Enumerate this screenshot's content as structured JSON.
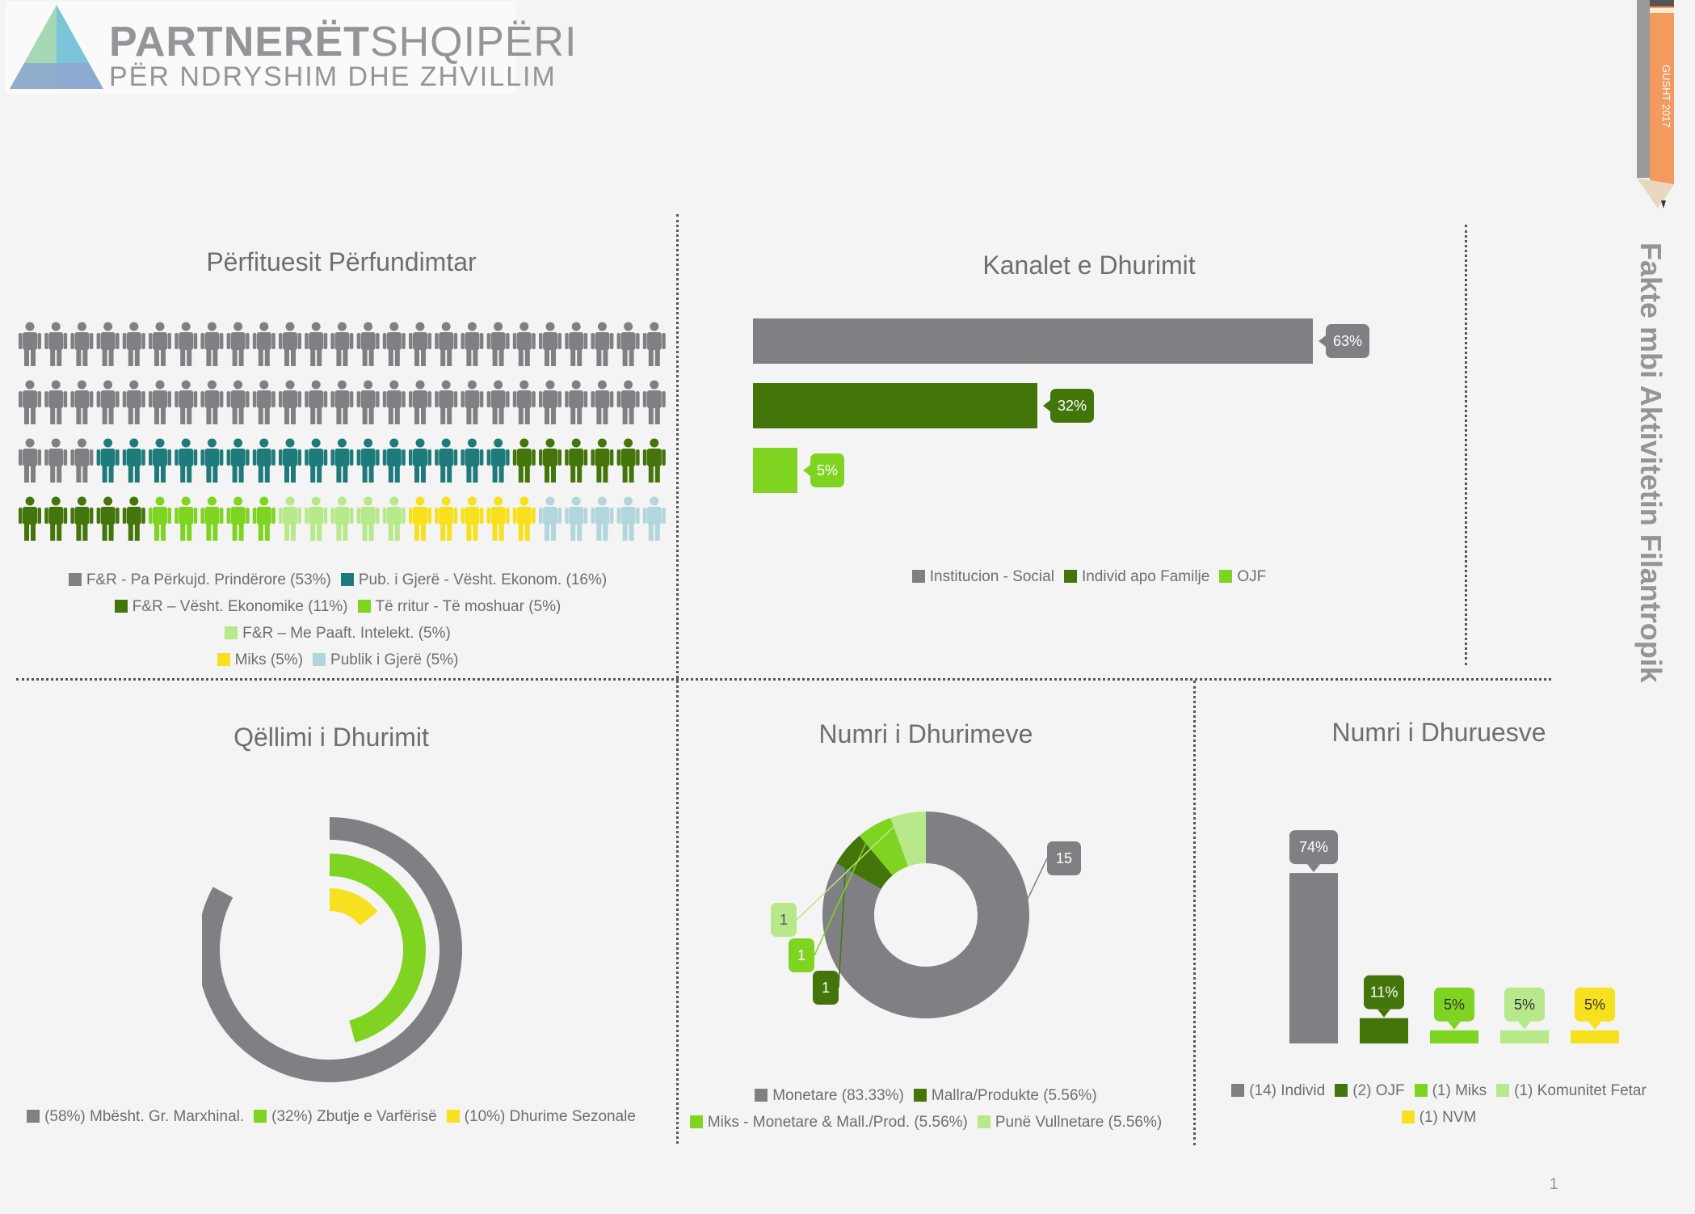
{
  "header": {
    "logo_main_bold": "PARTNERËT",
    "logo_main_light": "SHQIPËRI",
    "logo_sub": "PËR NDRYSHIM DHE ZHVILLIM",
    "side_title": "Fakte mbi Aktivitetin Filantropik",
    "pencil_label": "GUSHT 2017",
    "page_number": "1"
  },
  "colors": {
    "gray": "#808084",
    "teal": "#1f7b7b",
    "dark_green": "#43750a",
    "lime": "#7fd421",
    "light_green": "#b7e98a",
    "yellow": "#f7e11e",
    "light_blue": "#b3d6dd",
    "pencil_orange": "#f39a5f"
  },
  "chart_data": [
    {
      "id": "perfituesit",
      "type": "pictogram",
      "title": "Përfituesit Përfundimtar",
      "icons_per_row": 25,
      "rows": 4,
      "series": [
        {
          "name": "F&R - Pa Përkujd. Prindërore (53%)",
          "count": 53,
          "color": "#808084"
        },
        {
          "name": "Pub. i Gjerë - Vësht. Ekonom. (16%)",
          "count": 16,
          "color": "#1f7b7b"
        },
        {
          "name": "F&R – Vësht. Ekonomike (11%)",
          "count": 11,
          "color": "#43750a"
        },
        {
          "name": "Të rritur - Të moshuar (5%)",
          "count": 5,
          "color": "#7fd421"
        },
        {
          "name": "F&R – Me Paaft. Intelekt. (5%)",
          "count": 5,
          "color": "#b7e98a"
        },
        {
          "name": "Miks (5%)",
          "count": 5,
          "color": "#f7e11e"
        },
        {
          "name": "Publik i Gjerë (5%)",
          "count": 5,
          "color": "#b3d6dd"
        }
      ]
    },
    {
      "id": "kanalet",
      "type": "bar",
      "orientation": "horizontal",
      "title": "Kanalet e Dhurimit",
      "categories": [
        "Institucion - Social",
        "Individ apo Familje",
        "OJF"
      ],
      "values": [
        63,
        32,
        5
      ],
      "labels": [
        "63%",
        "32%",
        "5%"
      ],
      "colors": [
        "#808084",
        "#43750a",
        "#7fd421"
      ],
      "xlim": [
        0,
        100
      ]
    },
    {
      "id": "qellimi",
      "type": "radial-bar",
      "title": "Qëllimi i Dhurimit",
      "categories": [
        "(58%) Mbësht. Gr. Marxhinal.",
        "(32%) Zbutje e Varfërisë",
        "(10%) Dhurime Sezonale"
      ],
      "values": [
        58,
        32,
        10
      ],
      "colors": [
        "#808084",
        "#7fd421",
        "#f7e11e"
      ]
    },
    {
      "id": "numri-dhurimeve",
      "type": "pie",
      "variant": "donut",
      "title": "Numri i Dhurimeve",
      "categories": [
        "Monetare (83.33%)",
        "Mallra/Produkte (5.56%)",
        "Miks - Monetare & Mall./Prod. (5.56%)",
        "Punë Vullnetare (5.56%)"
      ],
      "values": [
        15,
        1,
        1,
        1
      ],
      "labels": [
        "15",
        "1",
        "1",
        "1"
      ],
      "colors": [
        "#808084",
        "#43750a",
        "#7fd421",
        "#b7e98a"
      ]
    },
    {
      "id": "numri-dhuruesve",
      "type": "bar",
      "title": "Numri i Dhuruesve",
      "categories": [
        "(14) Individ",
        "(2) OJF",
        "(1) Miks",
        "(1) Komunitet Fetar",
        "(1) NVM"
      ],
      "values": [
        74,
        11,
        5,
        5,
        5
      ],
      "labels": [
        "74%",
        "11%",
        "5%",
        "5%",
        "5%"
      ],
      "colors": [
        "#808084",
        "#43750a",
        "#7fd421",
        "#b7e98a",
        "#f7e11e"
      ],
      "ylim": [
        0,
        100
      ]
    }
  ]
}
